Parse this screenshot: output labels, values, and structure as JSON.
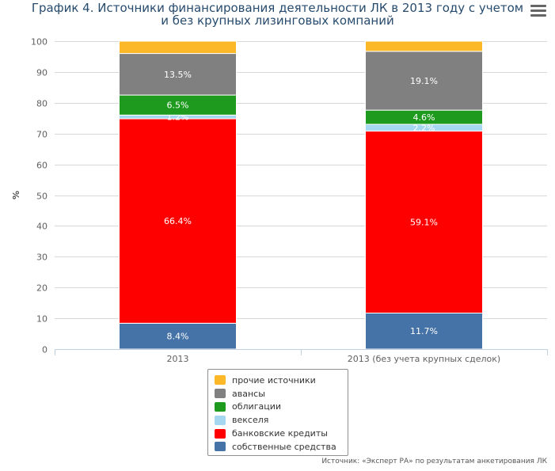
{
  "title_lines": [
    "График 4. Источники финансирования деятельности ЛК в 2013 году с учетом",
    "и без крупных лизинговых компаний"
  ],
  "source": "Источник: «Эксперт РА» по результатам анкетирования ЛК",
  "menu_icon": "hamburger-menu-icon",
  "chart_data": {
    "type": "bar",
    "stacked": true,
    "categories": [
      "2013",
      "2013 (без учета крупных сделок)"
    ],
    "ylabel": "%",
    "ylim": [
      0,
      100
    ],
    "yticks": [
      0,
      10,
      20,
      30,
      40,
      50,
      60,
      70,
      80,
      90,
      100
    ],
    "grid": true,
    "legend_placement": "bottom-center",
    "series": [
      {
        "name": "собственные средства",
        "color": "#4572a7",
        "values": [
          8.4,
          11.7
        ],
        "labels": [
          "8.4%",
          "11.7%"
        ]
      },
      {
        "name": "банковские кредиты",
        "color": "#ff0000",
        "values": [
          66.4,
          59.1
        ],
        "labels": [
          "66.4%",
          "59.1%"
        ]
      },
      {
        "name": "векселя",
        "color": "#a6d7f0",
        "values": [
          1.2,
          2.2
        ],
        "labels": [
          "1.2%",
          "2.2%"
        ]
      },
      {
        "name": "облигации",
        "color": "#1e9a1e",
        "values": [
          6.5,
          4.6
        ],
        "labels": [
          "6.5%",
          "4.6%"
        ]
      },
      {
        "name": "авансы",
        "color": "#808080",
        "values": [
          13.5,
          19.1
        ],
        "labels": [
          "13.5%",
          "19.1%"
        ]
      },
      {
        "name": "прочие источники",
        "color": "#fdb827",
        "values": [
          4.0,
          3.3
        ],
        "labels": [
          "",
          ""
        ]
      }
    ]
  }
}
